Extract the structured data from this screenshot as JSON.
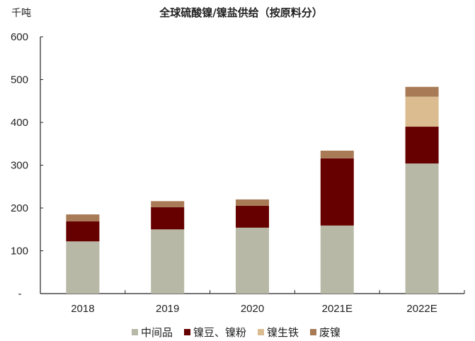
{
  "chart_data": {
    "type": "bar",
    "stacked": true,
    "title": "全球硫酸镍/镍盐供给（按原料分）",
    "ylabel": "千吨",
    "xlabel": "",
    "ylim": [
      0,
      600
    ],
    "yticks": [
      "-",
      "100",
      "200",
      "300",
      "400",
      "500",
      "600"
    ],
    "categories": [
      "2018",
      "2019",
      "2020",
      "2021E",
      "2022E"
    ],
    "series": [
      {
        "name": "中间品",
        "color": "#b8b8a6",
        "values": [
          122,
          150,
          154,
          159,
          304
        ]
      },
      {
        "name": "镍豆、镍粉",
        "color": "#660000",
        "values": [
          47,
          52,
          51,
          157,
          86
        ]
      },
      {
        "name": "镍生铁",
        "color": "#dbbb90",
        "values": [
          0,
          0,
          0,
          0,
          70
        ]
      },
      {
        "name": "废镍",
        "color": "#a87b56",
        "values": [
          16,
          14,
          15,
          18,
          23
        ]
      }
    ],
    "legend_position": "bottom",
    "grid": false
  },
  "header": {
    "unit": "千吨",
    "title": "全球硫酸镍/镍盐供给（按原料分）"
  },
  "legend": [
    {
      "label": "中间品",
      "color": "#b8b8a6"
    },
    {
      "label": "镍豆、镍粉",
      "color": "#660000"
    },
    {
      "label": "镍生铁",
      "color": "#dbbb90"
    },
    {
      "label": "废镍",
      "color": "#a87b56"
    }
  ]
}
